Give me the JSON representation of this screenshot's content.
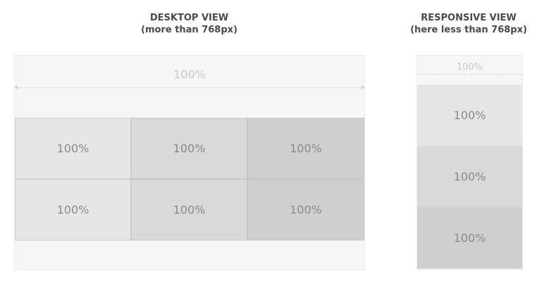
{
  "desktop": {
    "title": "DESKTOP VIEW",
    "subtitle": "(more than 768px)",
    "container_label": "100%",
    "cells": [
      "100%",
      "100%",
      "100%",
      "100%",
      "100%",
      "100%"
    ]
  },
  "responsive": {
    "title": "RESPONSIVE VIEW",
    "subtitle": "(here less than 768px)",
    "container_label": "100%",
    "cells": [
      "100%",
      "100%",
      "100%"
    ]
  },
  "colors": {
    "panel": "#f6f6f6",
    "col1": "#e6e6e6",
    "col2": "#d9d9d9",
    "col3": "#cfcfcf",
    "text": "#8a8a8a"
  }
}
